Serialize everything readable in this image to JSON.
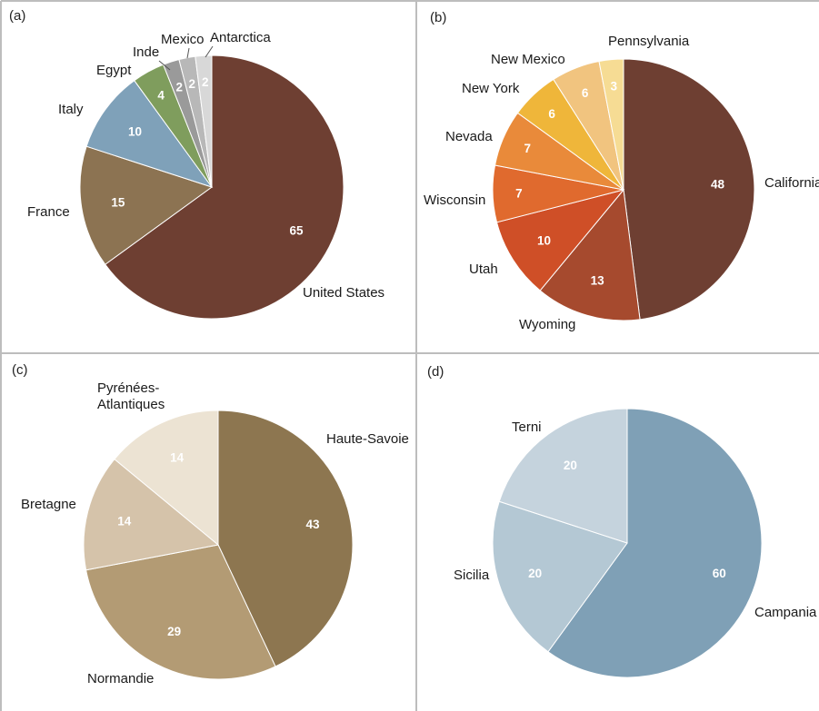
{
  "chart_data": [
    {
      "type": "pie",
      "panel": "(a)",
      "categories": [
        "United States",
        "France",
        "Italy",
        "Egypt",
        "Inde",
        "Mexico",
        "Antarctica"
      ],
      "values": [
        65,
        15,
        10,
        4,
        2,
        2,
        2
      ],
      "colors": [
        "#6e3f32",
        "#8c7352",
        "#7fa1b9",
        "#7f9d5d",
        "#9a9a9a",
        "#b8b8b8",
        "#d8d8d8"
      ]
    },
    {
      "type": "pie",
      "panel": "(b)",
      "categories": [
        "California",
        "Wyoming",
        "Utah",
        "Wisconsin",
        "Nevada",
        "New York",
        "New Mexico",
        "Pennsylvania"
      ],
      "values": [
        48,
        13,
        10,
        7,
        7,
        6,
        6,
        3
      ],
      "colors": [
        "#6e3f32",
        "#a64a2e",
        "#cf4f27",
        "#e06a2e",
        "#e98a3a",
        "#efb63a",
        "#f1c47f",
        "#f6dc94"
      ]
    },
    {
      "type": "pie",
      "panel": "(c)",
      "categories": [
        "Haute-Savoie",
        "Normandie",
        "Bretagne",
        "Pyrénées-Atlantiques"
      ],
      "values": [
        43,
        29,
        14,
        14
      ],
      "colors": [
        "#8d7650",
        "#b39b74",
        "#d5c3aa",
        "#ece3d3"
      ]
    },
    {
      "type": "pie",
      "panel": "(d)",
      "categories": [
        "Campania",
        "Sicilia",
        "Terni"
      ],
      "values": [
        60,
        20,
        20
      ],
      "colors": [
        "#7fa0b6",
        "#b4c8d4",
        "#c5d3dd"
      ]
    }
  ]
}
